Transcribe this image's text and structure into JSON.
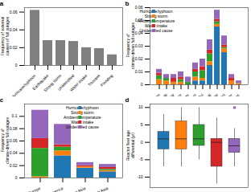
{
  "chart_data": [
    {
      "type": "bar",
      "title": "a",
      "categories": [
        "Hurricane/typhoon",
        "Earthquake",
        "Strong storm",
        "Unidentified",
        "Water intake",
        "Tsunami",
        "Flooding"
      ],
      "values": [
        0.062,
        0.028,
        0.028,
        0.027,
        0.02,
        0.019,
        0.012
      ],
      "color": "#808080",
      "y_label": "Frequency of external causes of full outages",
      "ylim": [
        0,
        0.065
      ],
      "yticks": [
        0,
        0.02,
        0.04,
        0.06
      ]
    },
    {
      "type": "bar",
      "title": "b",
      "stacked": true,
      "legend": "upper left",
      "categories": [
        "Jan",
        "Feb",
        "Mar",
        "Apr",
        "May",
        "Jun",
        "Jul",
        "Aug",
        "Sep",
        "Oct",
        "Nov",
        "Dec"
      ],
      "series": [
        {
          "name": "Hurricane/typhoon",
          "color": "#1f77b4",
          "values": [
            0,
            0,
            0,
            0,
            0,
            0.003,
            0.003,
            0.015,
            0.045,
            0.025,
            0,
            0
          ]
        },
        {
          "name": "Strong storm",
          "color": "#ff7f0e",
          "values": [
            0.004,
            0.003,
            0.002,
            0.002,
            0,
            0.003,
            0.002,
            0.003,
            0.002,
            0.003,
            0.003,
            0.001
          ]
        },
        {
          "name": "Ambient temperature",
          "color": "#2ca02c",
          "values": [
            0.003,
            0.002,
            0,
            0.002,
            0.002,
            0.004,
            0.006,
            0.006,
            0.002,
            0.001,
            0,
            0
          ]
        },
        {
          "name": "Water intake",
          "color": "#d62728",
          "values": [
            0.002,
            0,
            0.003,
            0.002,
            0,
            0.002,
            0.003,
            0.003,
            0.002,
            0.002,
            0.002,
            0
          ]
        },
        {
          "name": "Unidentified cause",
          "color": "#9467bd",
          "values": [
            0.003,
            0.003,
            0.003,
            0.004,
            0.004,
            0.005,
            0.006,
            0.008,
            0.007,
            0.007,
            0.003,
            0.002
          ]
        }
      ],
      "y_label": "Frequency of climate-driven full outages",
      "ylim": [
        0,
        0.06
      ],
      "yticks": [
        0,
        0.01,
        0.02,
        0.03,
        0.04,
        0.05,
        0.06
      ]
    },
    {
      "type": "bar",
      "title": "c",
      "stacked": true,
      "legend": "upper right",
      "categories": [
        "West Europe",
        "North America",
        "East Asia",
        "South Asia"
      ],
      "series": [
        {
          "name": "Hurricane/typhoon",
          "color": "#1f77b4",
          "values": [
            0,
            0.036,
            0.016,
            0.01
          ]
        },
        {
          "name": "Strong storm",
          "color": "#ff7f0e",
          "values": [
            0.002,
            0.008,
            0.002,
            0.002
          ]
        },
        {
          "name": "Ambient temperature",
          "color": "#2ca02c",
          "values": [
            0.046,
            0.006,
            0,
            0.002
          ]
        },
        {
          "name": "Water intake",
          "color": "#d62728",
          "values": [
            0.016,
            0.004,
            0.002,
            0.003
          ]
        },
        {
          "name": "Unidentified cause",
          "color": "#9467bd",
          "values": [
            0.046,
            0.033,
            0.005,
            0.005
          ]
        }
      ],
      "y_label": "Frequency of climate-driven full outages",
      "ylim": [
        0,
        0.12
      ],
      "yticks": [
        0,
        0.02,
        0.04,
        0.06,
        0.08,
        0.1
      ]
    },
    {
      "type": "box",
      "title": "d",
      "tick_labels": "y",
      "categories": [
        "Hurricane/typhoon",
        "Strong storm",
        "Ambient temperature",
        "Water intake",
        "Unidentified cause"
      ],
      "colors": [
        "#1f77b4",
        "#ff7f0e",
        "#2ca02c",
        "#d62728",
        "#9467bd"
      ],
      "min": [
        -7,
        -7,
        -5,
        -12,
        -7
      ],
      "q1": [
        -2,
        -2,
        -1,
        -7,
        -3
      ],
      "median": [
        1,
        1,
        1,
        0,
        -1
      ],
      "q3": [
        3,
        6,
        5,
        1,
        1
      ],
      "max": [
        8,
        10,
        10,
        7,
        4
      ],
      "outliers": [
        [],
        [],
        [],
        [],
        [
          10
        ]
      ],
      "y_label": "Reactor fleet age differential (yr)",
      "ylim": [
        -13,
        11
      ],
      "yticks": [
        -10,
        -5,
        0,
        5,
        10
      ]
    }
  ]
}
